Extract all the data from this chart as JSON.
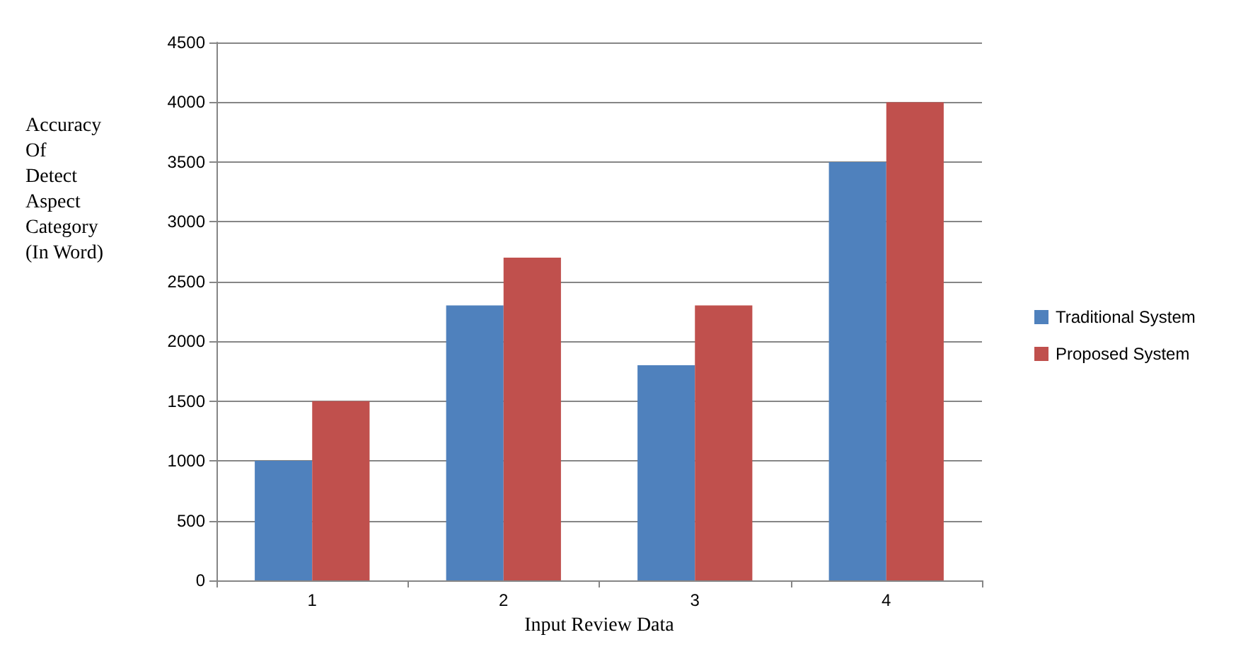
{
  "chart_data": {
    "type": "bar",
    "xlabel": "Input Review Data",
    "ylabel": "Accuracy\nOf\nDetect\nAspect\nCategory\n(In Word)",
    "categories": [
      "1",
      "2",
      "3",
      "4"
    ],
    "series": [
      {
        "name": "Traditional System",
        "color": "#4f81bd",
        "values": [
          1000,
          2300,
          1800,
          3500
        ]
      },
      {
        "name": "Proposed System",
        "color": "#c0504d",
        "values": [
          1500,
          2700,
          2300,
          4000
        ]
      }
    ],
    "ylim": [
      0,
      4500
    ],
    "yticks": [
      0,
      500,
      1000,
      1500,
      2000,
      2500,
      3000,
      3500,
      4000,
      4500
    ],
    "grid": "y",
    "legend": "right"
  }
}
